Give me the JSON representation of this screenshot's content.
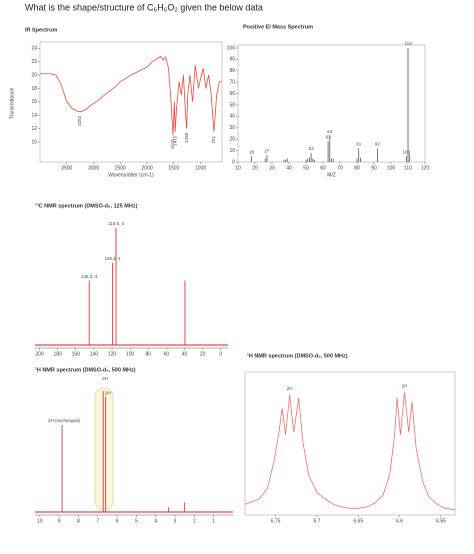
{
  "question": "What is the shape/structure of C₆H₆O₂ given the below data",
  "chart_data": [
    {
      "type": "line",
      "title": "IR Spectrum",
      "xlabel": "Wavenumber (cm-1)",
      "ylabel": "Transmittance",
      "color": "#e74c3c",
      "xlim": [
        4000,
        600
      ],
      "ylim": [
        7,
        24.5
      ],
      "xticks": [
        3500,
        3000,
        2500,
        2000,
        1500,
        1000
      ],
      "yticks": [
        10,
        12,
        14,
        16,
        18,
        20,
        22,
        24
      ],
      "x": [
        4000,
        3800,
        3700,
        3600,
        3500,
        3400,
        3300,
        3250,
        3150,
        3050,
        2900,
        2800,
        2600,
        2500,
        2300,
        2100,
        2000,
        1900,
        1800,
        1750,
        1700,
        1650,
        1600,
        1560,
        1515,
        1490,
        1475,
        1450,
        1400,
        1360,
        1320,
        1280,
        1260,
        1240,
        1200,
        1150,
        1100,
        1040,
        1000,
        950,
        900,
        850,
        800,
        751,
        700,
        650,
        600
      ],
      "values": [
        20.2,
        20.2,
        20.0,
        18.5,
        16,
        15,
        14.6,
        14.5,
        14.8,
        15.5,
        16.3,
        17,
        18.2,
        19,
        20,
        20.8,
        21.2,
        22,
        22.5,
        22.8,
        22.2,
        22.7,
        21,
        17,
        11,
        16,
        11.5,
        15,
        19,
        17,
        20,
        14,
        12,
        17,
        20,
        16,
        21.5,
        18,
        19.5,
        21,
        18,
        20,
        17,
        11.5,
        17,
        19,
        19
      ],
      "annotations": [
        3252,
        1515,
        1475,
        1260,
        751
      ]
    },
    {
      "type": "stem",
      "title": "Positive EI Mass Spectrum",
      "xlabel": "M/Z",
      "color": "#555555",
      "xlim": [
        10,
        120
      ],
      "ylim": [
        0,
        100
      ],
      "xticks": [
        10,
        20,
        30,
        40,
        50,
        60,
        70,
        80,
        90,
        100,
        110,
        120
      ],
      "yticks": [
        0,
        10,
        20,
        30,
        40,
        50,
        60,
        70,
        80,
        90,
        100
      ],
      "x": [
        18,
        26,
        27,
        37,
        38,
        39,
        50,
        51,
        52,
        53,
        54,
        55,
        63,
        64,
        65,
        66,
        80,
        81,
        82,
        92,
        109,
        110,
        111
      ],
      "values": [
        5,
        3,
        6,
        2,
        2,
        3,
        2,
        3,
        4,
        8,
        3,
        2,
        18,
        23,
        3,
        3,
        3,
        12,
        4,
        12,
        5,
        100,
        7
      ],
      "peak_labels": [
        18,
        null,
        27,
        null,
        null,
        null,
        null,
        null,
        null,
        53,
        null,
        null,
        63,
        64,
        null,
        null,
        null,
        81,
        null,
        92,
        109,
        110,
        null
      ]
    },
    {
      "type": "stem",
      "title": "¹³C NMR spectrum (DMSO-d₆, 125 MHz)",
      "color": "#d62020",
      "xlim": [
        205,
        -8
      ],
      "ylim": [
        0,
        105
      ],
      "xticks": [
        200,
        180,
        160,
        140,
        120,
        100,
        80,
        60,
        40,
        20,
        0
      ],
      "x": [
        145.2,
        119.3,
        115.6,
        39.5
      ],
      "values": [
        55,
        70,
        100,
        55
      ],
      "peak_labels": [
        "145.2, 4",
        "119.3, 4",
        "115.6, 4",
        null
      ]
    },
    {
      "type": "stem",
      "title": "¹H NMR spectrum (DMSO-d₆, 500 MHz)",
      "color": "#d62020",
      "xlim": [
        10.25,
        0
      ],
      "ylim": [
        0,
        105
      ],
      "xticks": [
        10,
        9,
        8,
        7,
        6,
        5,
        4,
        3,
        2,
        1
      ],
      "x": [
        8.85,
        6.72,
        6.59,
        3.33,
        2.5
      ],
      "values": [
        72,
        100,
        95,
        4,
        8
      ],
      "peak_labels": [
        "2H (exchanged)",
        "2H",
        "2H",
        null,
        null
      ]
    },
    {
      "type": "line",
      "title": "¹H NMR spectrum (DMSO-d₆, 500 MHz)",
      "color": "#f07070",
      "xlim": [
        6.787,
        6.533
      ],
      "ylim": [
        0,
        1.05
      ],
      "xticks": [
        6.75,
        6.7,
        6.65,
        6.6,
        6.55
      ],
      "x": [
        6.787,
        6.77,
        6.76,
        6.752,
        6.746,
        6.742,
        6.738,
        6.733,
        6.728,
        6.722,
        6.717,
        6.71,
        6.7,
        6.69,
        6.68,
        6.67,
        6.66,
        6.65,
        6.64,
        6.63,
        6.62,
        6.612,
        6.606,
        6.603,
        6.599,
        6.594,
        6.589,
        6.585,
        6.58,
        6.572,
        6.565,
        6.555,
        6.545,
        6.533
      ],
      "values": [
        0.08,
        0.12,
        0.2,
        0.4,
        0.62,
        0.8,
        0.6,
        0.9,
        0.62,
        0.88,
        0.55,
        0.3,
        0.17,
        0.12,
        0.08,
        0.06,
        0.05,
        0.05,
        0.06,
        0.09,
        0.15,
        0.3,
        0.6,
        0.88,
        0.6,
        0.92,
        0.62,
        0.85,
        0.5,
        0.25,
        0.14,
        0.08,
        0.05,
        0.04
      ],
      "annotations": [
        {
          "x": 6.733,
          "label": "2H"
        },
        {
          "x": 6.594,
          "label": "2H"
        }
      ]
    }
  ]
}
